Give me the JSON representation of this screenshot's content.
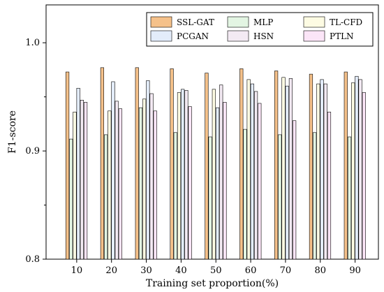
{
  "chart_data": {
    "type": "bar",
    "title": "",
    "xlabel": "Training set proportion(%)",
    "ylabel": "F1-score",
    "categories": [
      "10",
      "20",
      "30",
      "40",
      "50",
      "60",
      "70",
      "80",
      "90"
    ],
    "ylim": [
      0.8,
      1.035
    ],
    "yticks": [
      "0.8",
      "0.9",
      "1.0"
    ],
    "grid": false,
    "legend_position": "top-right",
    "series": [
      {
        "name": "SSL-GAT",
        "color": "#f5c18a",
        "values": [
          0.973,
          0.977,
          0.977,
          0.976,
          0.972,
          0.976,
          0.974,
          0.971,
          0.973
        ]
      },
      {
        "name": "MLP",
        "color": "#e3f5e3",
        "values": [
          0.911,
          0.915,
          0.94,
          0.917,
          0.913,
          0.92,
          0.915,
          0.917,
          0.913
        ]
      },
      {
        "name": "TL-CFD",
        "color": "#fdfbe3",
        "values": [
          0.936,
          0.937,
          0.948,
          0.954,
          0.957,
          0.966,
          0.968,
          0.962,
          0.963
        ]
      },
      {
        "name": "PCGAN",
        "color": "#e3ecfa",
        "values": [
          0.958,
          0.964,
          0.965,
          0.957,
          0.94,
          0.962,
          0.96,
          0.966,
          0.969
        ]
      },
      {
        "name": "HSN",
        "color": "#f3eaf3",
        "values": [
          0.947,
          0.946,
          0.953,
          0.956,
          0.961,
          0.955,
          0.967,
          0.962,
          0.966
        ]
      },
      {
        "name": "PTLN",
        "color": "#fbe5f7",
        "values": [
          0.945,
          0.939,
          0.937,
          0.941,
          0.945,
          0.944,
          0.928,
          0.936,
          0.954
        ]
      }
    ]
  }
}
